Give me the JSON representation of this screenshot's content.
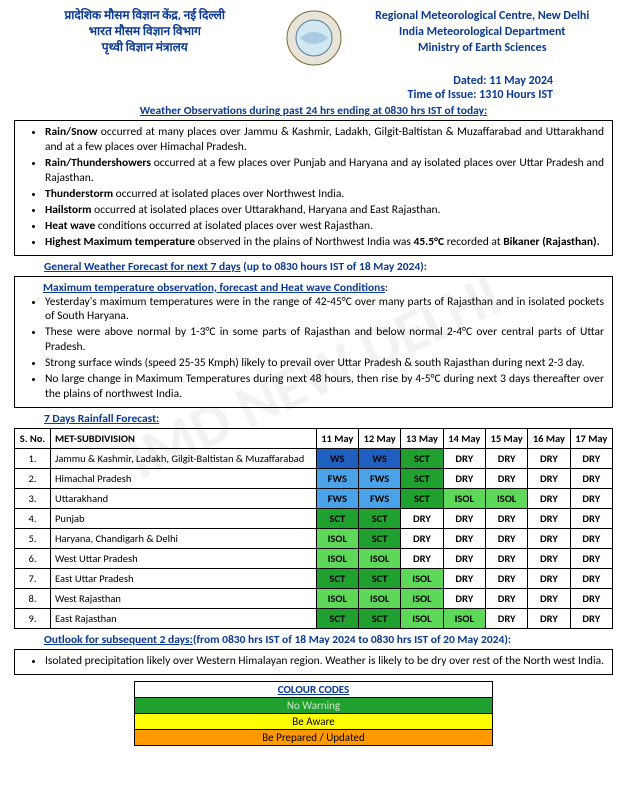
{
  "header": {
    "left_lines": [
      "प्रादेशिक मौसम विज्ञान केंद्र, नई दिल्ली",
      "भारत मौसम विज्ञान विभाग",
      "पृथ्वी विज्ञान मंत्रालय"
    ],
    "right_lines": [
      "Regional Meteorological Centre, New Delhi",
      "India Meteorological Department",
      "Ministry of Earth Sciences"
    ],
    "dated": "Dated: 11 May 2024",
    "time": "Time of Issue: 1310 Hours IST"
  },
  "obs": {
    "title": "Weather Observations during past 24 hrs ending at 0830 hrs IST of today:",
    "bullets": [
      "<b>Rain/Snow</b> occurred at many places over Jammu & Kashmir, Ladakh, Gilgit-Baltistan & Muzaffarabad and Uttarakhand and at a few places over Himachal Pradesh.",
      "<b>Rain/Thundershowers</b> occurred at a few places over Punjab and Haryana and ay isolated places over Uttar Pradesh and Rajasthan.",
      "<b>Thunderstorm</b> occurred at isolated places over Northwest India.",
      "<b>Hailstorm</b> occurred at isolated places over Uttarakhand, Haryana and East Rajasthan.",
      "<b>Heat wave</b> conditions occurred at isolated places over west Rajasthan.",
      "<b>Highest Maximum temperature</b> observed in the plains of Northwest India was <b>45.5°C</b> recorded at <b>Bikaner (Rajasthan).</b>"
    ]
  },
  "gwf": {
    "title": "General Weather Forecast for next 7 days",
    "paren": " (up to 0830 hours IST of 18 May 2024):",
    "temp_title": "Maximum temperature observation, forecast and Heat wave Conditions",
    "bullets": [
      "Yesterday's maximum temperatures were in the range of 42-45°C over many parts of Rajasthan and in isolated pockets of South Haryana.",
      "These were above normal by 1-3°C in some parts of Rajasthan and below normal 2-4°C over central parts of Uttar Pradesh.",
      "Strong surface winds (speed 25-35 Kmph) likely to prevail over Uttar Pradesh & south Rajasthan during next 2-3 day.",
      "No large change in Maximum Temperatures during next 48 hours, then rise by 4-5°C during next 3 days thereafter over the plains of northwest India."
    ]
  },
  "rainfall": {
    "title": "7 Days Rainfall Forecast:",
    "dates": [
      "11 May",
      "12 May",
      "13 May",
      "14 May",
      "15 May",
      "16 May",
      "17 May"
    ],
    "col_sno": "S. No.",
    "col_sub": "MET-SUBDIVISION",
    "colors": {
      "WS": "#1e5fbf",
      "FWS": "#4aa3e8",
      "SCT": "#1fa02f",
      "ISOL": "#5ed858",
      "DRY": "#ffffff"
    },
    "text_colors": {
      "WS": "#000000",
      "FWS": "#000000",
      "SCT": "#000000",
      "ISOL": "#000000",
      "DRY": "#000000"
    },
    "rows": [
      {
        "n": "1.",
        "name": "Jammu & Kashmir, Ladakh, Gilgit-Baltistan & Muzaffarabad",
        "v": [
          "WS",
          "WS",
          "SCT",
          "DRY",
          "DRY",
          "DRY",
          "DRY"
        ]
      },
      {
        "n": "2.",
        "name": "Himachal Pradesh",
        "v": [
          "FWS",
          "FWS",
          "SCT",
          "DRY",
          "DRY",
          "DRY",
          "DRY"
        ]
      },
      {
        "n": "3.",
        "name": "Uttarakhand",
        "v": [
          "FWS",
          "FWS",
          "SCT",
          "ISOL",
          "ISOL",
          "DRY",
          "DRY"
        ]
      },
      {
        "n": "4.",
        "name": "Punjab",
        "v": [
          "SCT",
          "SCT",
          "DRY",
          "DRY",
          "DRY",
          "DRY",
          "DRY"
        ]
      },
      {
        "n": "5.",
        "name": "Haryana, Chandigarh & Delhi",
        "v": [
          "ISOL",
          "SCT",
          "DRY",
          "DRY",
          "DRY",
          "DRY",
          "DRY"
        ]
      },
      {
        "n": "6.",
        "name": "West Uttar Pradesh",
        "v": [
          "ISOL",
          "ISOL",
          "DRY",
          "DRY",
          "DRY",
          "DRY",
          "DRY"
        ]
      },
      {
        "n": "7.",
        "name": "East Uttar Pradesh",
        "v": [
          "SCT",
          "SCT",
          "ISOL",
          "DRY",
          "DRY",
          "DRY",
          "DRY"
        ]
      },
      {
        "n": "8.",
        "name": "West Rajasthan",
        "v": [
          "ISOL",
          "ISOL",
          "ISOL",
          "DRY",
          "DRY",
          "DRY",
          "DRY"
        ]
      },
      {
        "n": "9.",
        "name": "East Rajasthan",
        "v": [
          "SCT",
          "SCT",
          "ISOL",
          "ISOL",
          "DRY",
          "DRY",
          "DRY"
        ]
      }
    ]
  },
  "outlook": {
    "title": "Outlook for subsequent 2 days:",
    "paren": "(from 0830 hrs IST of 18 May 2024 to 0830 hrs IST of 20 May 2024):",
    "bullets": [
      "Isolated precipitation likely over Western Himalayan region. Weather is likely to be dry over rest of the North west India."
    ]
  },
  "legend": {
    "title": "COLOUR CODES",
    "rows": [
      {
        "label": "No Warning",
        "bg": "#1fa02f",
        "fg": "#cfe9c9"
      },
      {
        "label": "Be Aware",
        "bg": "#ffff00",
        "fg": "#000000"
      },
      {
        "label": "Be Prepared / Updated",
        "bg": "#ff9900",
        "fg": "#000000"
      }
    ]
  }
}
